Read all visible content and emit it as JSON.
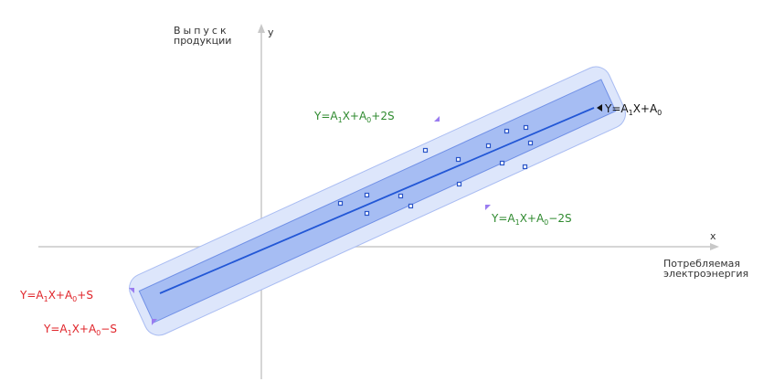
{
  "axes": {
    "y_title_line1": "Выпуск",
    "y_title_line2": "продукции",
    "y_symbol": "у",
    "x_symbol": "x",
    "x_title_line1": "Потребляемая",
    "x_title_line2": "электроэнергия"
  },
  "labels": {
    "regression": {
      "Y": "Y=A",
      "sub1": "1",
      "mid": "X+A",
      "sub0": "0",
      "tail": ""
    },
    "upper_2s": {
      "Y": "Y=A",
      "sub1": "1",
      "mid": "X+A",
      "sub0": "0",
      "tail": "+2S"
    },
    "lower_2s": {
      "Y": "Y=A",
      "sub1": "1",
      "mid": "X+A",
      "sub0": "0",
      "tail": "−2S"
    },
    "upper_1s": {
      "Y": "Y=A",
      "sub1": "1",
      "mid": "X+A",
      "sub0": "0",
      "tail": "+S"
    },
    "lower_1s": {
      "Y": "Y=A",
      "sub1": "1",
      "mid": "X+A",
      "sub0": "0",
      "tail": "−S"
    }
  },
  "colors": {
    "axis": "#c8c8c8",
    "outer_band": "#dde6fb",
    "outer_border": "#a9bcf2",
    "inner_band": "#a6bdf3",
    "inner_border": "#6f8fe6",
    "regression_line": "#2257d6",
    "points": "#2a55c8",
    "green_label": "#2f8a2f",
    "red_label": "#e0242a",
    "black_label": "#111111",
    "marker": "#9a7cf0"
  }
}
